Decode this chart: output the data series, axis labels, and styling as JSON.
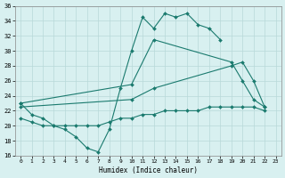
{
  "xlabel": "Humidex (Indice chaleur)",
  "line_color": "#1a7a6e",
  "bg_color": "#d8f0f0",
  "grid_color": "#b8d8d8",
  "ylim": [
    16,
    36
  ],
  "xlim": [
    -0.5,
    23.5
  ],
  "yticks": [
    16,
    18,
    20,
    22,
    24,
    26,
    28,
    30,
    32,
    34,
    36
  ],
  "xticks": [
    0,
    1,
    2,
    3,
    4,
    5,
    6,
    7,
    8,
    9,
    10,
    11,
    12,
    13,
    14,
    15,
    16,
    17,
    18,
    19,
    20,
    21,
    22,
    23
  ],
  "curve1_x": [
    0,
    1,
    2,
    3,
    4,
    5,
    6,
    7,
    8,
    9,
    10,
    11,
    12,
    13,
    14,
    15,
    16,
    17,
    18
  ],
  "curve1_y": [
    23,
    21.5,
    21,
    20,
    19.5,
    18.5,
    17,
    16.5,
    19.5,
    25,
    30,
    34.5,
    33,
    35,
    34.5,
    35,
    33.5,
    33,
    31.5
  ],
  "curve2_x": [
    0,
    10,
    12,
    19,
    20,
    21,
    22
  ],
  "curve2_y": [
    23,
    25.5,
    31.5,
    28.5,
    26,
    23.5,
    22.5
  ],
  "curve3_x": [
    0,
    10,
    12,
    19,
    20,
    21,
    22
  ],
  "curve3_y": [
    22.5,
    23.5,
    25,
    28,
    28.5,
    26,
    22.5
  ],
  "curve4_x": [
    0,
    1,
    2,
    3,
    4,
    5,
    6,
    7,
    8,
    9,
    10,
    11,
    12,
    13,
    14,
    15,
    16,
    17,
    18,
    19,
    20,
    21,
    22
  ],
  "curve4_y": [
    21,
    20.5,
    20,
    20,
    20,
    20,
    20,
    20,
    20.5,
    21,
    21,
    21.5,
    21.5,
    22,
    22,
    22,
    22,
    22.5,
    22.5,
    22.5,
    22.5,
    22.5,
    22
  ]
}
